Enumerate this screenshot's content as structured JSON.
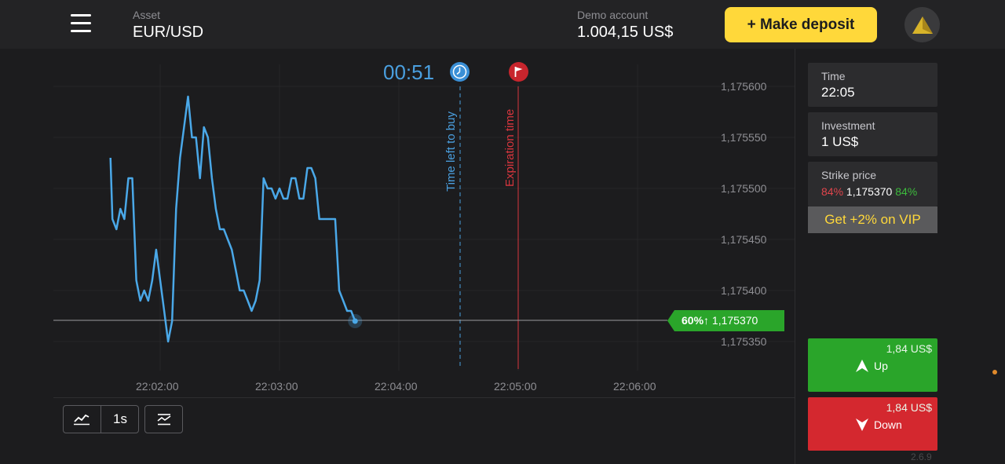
{
  "header": {
    "asset_label": "Asset",
    "asset_value": "EUR/USD",
    "account_label": "Demo account",
    "account_value": "1.004,15 US$",
    "deposit_label": "+ Make deposit",
    "menu_icon": "hamburger-menu-icon",
    "avatar_icon": "triangle-logo-icon"
  },
  "chart": {
    "timer": "00:51",
    "time_left_label": "Time left to buy",
    "expiration_label": "Expiration time",
    "price_ticks": [
      "1,175600",
      "1,175550",
      "1,175500",
      "1,175450",
      "1,175400",
      "1,175350"
    ],
    "time_ticks": [
      "22:02:00",
      "22:03:00",
      "22:04:00",
      "22:05:00",
      "22:06:00"
    ],
    "current_price_pct": "60%↑",
    "current_price": "1,175370",
    "line_color": "#4aa8e8",
    "up_color": "#2aa52a",
    "down_color": "#d4282f",
    "accent_color": "#ffd83a"
  },
  "chart_data": {
    "type": "line",
    "ylim": [
      1.17534,
      1.17561
    ],
    "x": [
      "22:01:35",
      "22:01:36",
      "22:01:38",
      "22:01:40",
      "22:01:42",
      "22:01:44",
      "22:01:46",
      "22:01:48",
      "22:01:50",
      "22:01:52",
      "22:01:54",
      "22:01:56",
      "22:01:58",
      "22:02:00",
      "22:02:02",
      "22:02:04",
      "22:02:06",
      "22:02:08",
      "22:02:10",
      "22:02:12",
      "22:02:14",
      "22:02:16",
      "22:02:18",
      "22:02:20",
      "22:02:22",
      "22:02:24",
      "22:02:26",
      "22:02:28",
      "22:02:30",
      "22:02:32",
      "22:02:34",
      "22:02:36",
      "22:02:38",
      "22:02:40",
      "22:02:42",
      "22:02:44",
      "22:02:46",
      "22:02:48",
      "22:02:50",
      "22:02:52",
      "22:02:54",
      "22:02:56",
      "22:02:58",
      "22:03:00",
      "22:03:02",
      "22:03:04",
      "22:03:06",
      "22:03:08",
      "22:03:10",
      "22:03:12",
      "22:03:14",
      "22:03:16",
      "22:03:18",
      "22:03:20",
      "22:03:22",
      "22:03:24",
      "22:03:26",
      "22:03:28",
      "22:03:30",
      "22:03:32",
      "22:03:34",
      "22:03:36",
      "22:03:38"
    ],
    "values": [
      1.17553,
      1.17547,
      1.17546,
      1.17548,
      1.17547,
      1.17551,
      1.17551,
      1.17541,
      1.17539,
      1.1754,
      1.17539,
      1.17541,
      1.17544,
      1.17541,
      1.17538,
      1.17535,
      1.17537,
      1.17548,
      1.17553,
      1.17556,
      1.17559,
      1.17555,
      1.17555,
      1.17551,
      1.17556,
      1.17555,
      1.17551,
      1.17548,
      1.17546,
      1.17546,
      1.17545,
      1.17544,
      1.17542,
      1.1754,
      1.1754,
      1.17539,
      1.17538,
      1.17539,
      1.17541,
      1.17551,
      1.1755,
      1.1755,
      1.17549,
      1.1755,
      1.17549,
      1.17549,
      1.17551,
      1.17551,
      1.17549,
      1.17549,
      1.17552,
      1.17552,
      1.17551,
      1.17547,
      1.17547,
      1.17547,
      1.17547,
      1.17547,
      1.1754,
      1.17539,
      1.17538,
      1.17538,
      1.17537
    ]
  },
  "toolbar": {
    "line_icon": "line-chart-icon",
    "interval_label": "1s",
    "indicator_icon": "indicators-icon"
  },
  "sidebar": {
    "time_label": "Time",
    "time_value": "22:05",
    "investment_label": "Investment",
    "investment_value": "1 US$",
    "strike_label": "Strike price",
    "strike_left_pct": "84%",
    "strike_price": "1,175370",
    "strike_right_pct": "84%",
    "vip_label": "Get +2% on VIP"
  },
  "trade": {
    "up_amount": "1,84 US$",
    "up_label": "Up",
    "down_amount": "1,84 US$",
    "down_label": "Down",
    "version": "2.6.9"
  }
}
